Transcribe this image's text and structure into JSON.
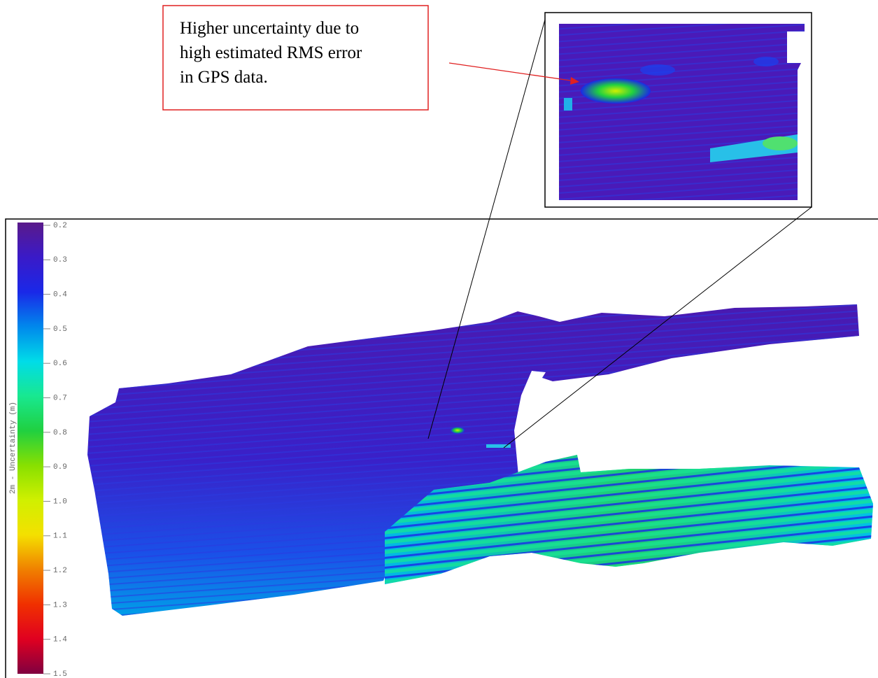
{
  "annotation": {
    "lines": [
      "Higher uncertainty due to",
      "high estimated RMS error",
      "in GPS data."
    ]
  },
  "colorbar": {
    "label": "2m - Uncertainty (m)",
    "range": [
      0.2,
      1.5
    ],
    "ticks": [
      0.2,
      0.3,
      0.4,
      0.5,
      0.6,
      0.7,
      0.8,
      0.9,
      {
        "value": 1,
        "label": "1.0"
      },
      1.1,
      1.2,
      1.3,
      1.4,
      1.5
    ],
    "colors": [
      "#5a1a8a",
      "#3a1ac8",
      "#1a28e8",
      "#0088ec",
      "#00dce8",
      "#18e890",
      "#20d040",
      "#88e000",
      "#d0f000",
      "#f4e000",
      "#f08000",
      "#f03000",
      "#e00020",
      "#800040"
    ]
  }
}
